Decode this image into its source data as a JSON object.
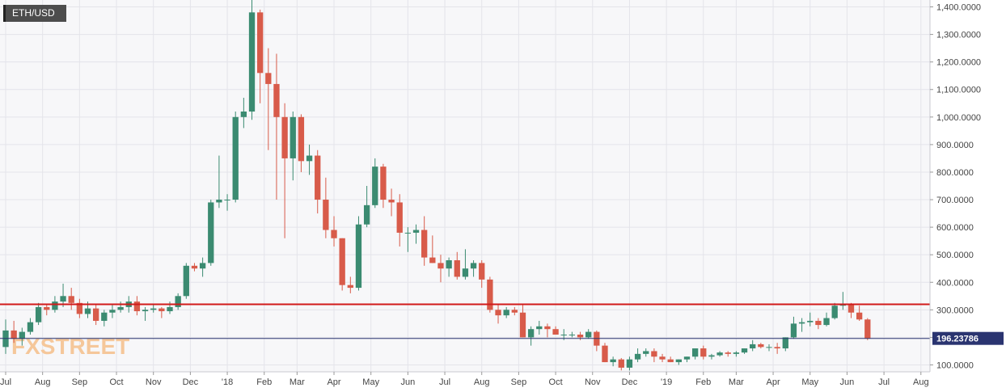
{
  "symbol": "ETH/USD",
  "watermark": {
    "prefix": "FX",
    "suffix": "STREET"
  },
  "colors": {
    "up": "#3b8b71",
    "down": "#d85b4a",
    "level_line": "#d11a1a",
    "price_line": "#2a3470",
    "price_badge_bg": "#2a3470",
    "watermark": "#f5c79a"
  },
  "chart_data": {
    "type": "candlestick",
    "title": "ETH/USD",
    "ylim": [
      75,
      1425
    ],
    "y_ticks": [
      {
        "value": 100,
        "label": "100.0000"
      },
      {
        "value": 200,
        "label": "200.0000"
      },
      {
        "value": 300,
        "label": "300.0000"
      },
      {
        "value": 400,
        "label": "400.0000"
      },
      {
        "value": 500,
        "label": "500.0000"
      },
      {
        "value": 600,
        "label": "600.0000"
      },
      {
        "value": 700,
        "label": "700.0000"
      },
      {
        "value": 800,
        "label": "800.0000"
      },
      {
        "value": 900,
        "label": "900.0000"
      },
      {
        "value": 1000,
        "label": "1,000.0000"
      },
      {
        "value": 1100,
        "label": "1,100.0000"
      },
      {
        "value": 1200,
        "label": "1,200.0000"
      },
      {
        "value": 1300,
        "label": "1,300.0000"
      },
      {
        "value": 1400,
        "label": "1,400.0000"
      }
    ],
    "x_ticks": [
      {
        "week": 0,
        "label": "Jul"
      },
      {
        "week": 4.5,
        "label": "Aug"
      },
      {
        "week": 9,
        "label": "Sep"
      },
      {
        "week": 13.5,
        "label": "Oct"
      },
      {
        "week": 18,
        "label": "Nov"
      },
      {
        "week": 22.5,
        "label": "Dec"
      },
      {
        "week": 27,
        "label": "'18"
      },
      {
        "week": 31.5,
        "label": "Feb"
      },
      {
        "week": 35.5,
        "label": "Mar"
      },
      {
        "week": 40,
        "label": "Apr"
      },
      {
        "week": 44.5,
        "label": "May"
      },
      {
        "week": 49,
        "label": "Jun"
      },
      {
        "week": 53.5,
        "label": "Jul"
      },
      {
        "week": 58,
        "label": "Aug"
      },
      {
        "week": 62.5,
        "label": "Sep"
      },
      {
        "week": 67,
        "label": "Oct"
      },
      {
        "week": 71.5,
        "label": "Nov"
      },
      {
        "week": 76,
        "label": "Dec"
      },
      {
        "week": 80.5,
        "label": "'19"
      },
      {
        "week": 85,
        "label": "Feb"
      },
      {
        "week": 89,
        "label": "Mar"
      },
      {
        "week": 93.5,
        "label": "Apr"
      },
      {
        "week": 98,
        "label": "May"
      },
      {
        "week": 102.5,
        "label": "Jun"
      },
      {
        "week": 107,
        "label": "Jul"
      },
      {
        "week": 111.5,
        "label": "Aug"
      }
    ],
    "weeks_visible": 113,
    "candles": [
      [
        165,
        265,
        140,
        225
      ],
      [
        225,
        260,
        180,
        195
      ],
      [
        195,
        235,
        170,
        220
      ],
      [
        220,
        270,
        210,
        255
      ],
      [
        255,
        325,
        245,
        310
      ],
      [
        310,
        320,
        280,
        300
      ],
      [
        300,
        350,
        290,
        330
      ],
      [
        330,
        395,
        310,
        350
      ],
      [
        350,
        380,
        300,
        325
      ],
      [
        325,
        340,
        270,
        285
      ],
      [
        285,
        330,
        270,
        305
      ],
      [
        305,
        320,
        245,
        260
      ],
      [
        260,
        300,
        240,
        290
      ],
      [
        290,
        320,
        270,
        300
      ],
      [
        300,
        330,
        290,
        310
      ],
      [
        310,
        350,
        290,
        330
      ],
      [
        330,
        350,
        280,
        295
      ],
      [
        295,
        310,
        260,
        300
      ],
      [
        300,
        320,
        290,
        305
      ],
      [
        305,
        310,
        270,
        295
      ],
      [
        295,
        330,
        285,
        310
      ],
      [
        310,
        360,
        300,
        350
      ],
      [
        350,
        470,
        340,
        460
      ],
      [
        460,
        470,
        440,
        450
      ],
      [
        450,
        490,
        420,
        470
      ],
      [
        470,
        700,
        460,
        690
      ],
      [
        690,
        860,
        670,
        700
      ],
      [
        700,
        720,
        660,
        700
      ],
      [
        700,
        1020,
        690,
        1000
      ],
      [
        1000,
        1070,
        960,
        1020
      ],
      [
        1020,
        1430,
        990,
        1380
      ],
      [
        1380,
        1390,
        1050,
        1160
      ],
      [
        1160,
        1250,
        880,
        1120
      ],
      [
        1120,
        1230,
        700,
        1000
      ],
      [
        1000,
        1050,
        560,
        850
      ],
      [
        850,
        1020,
        770,
        1000
      ],
      [
        1000,
        1010,
        800,
        840
      ],
      [
        840,
        900,
        790,
        860
      ],
      [
        860,
        880,
        650,
        700
      ],
      [
        700,
        780,
        560,
        590
      ],
      [
        590,
        640,
        530,
        560
      ],
      [
        560,
        560,
        370,
        390
      ],
      [
        390,
        420,
        360,
        380
      ],
      [
        380,
        640,
        370,
        610
      ],
      [
        610,
        750,
        600,
        680
      ],
      [
        680,
        850,
        670,
        820
      ],
      [
        820,
        830,
        670,
        700
      ],
      [
        700,
        740,
        640,
        690
      ],
      [
        690,
        720,
        530,
        580
      ],
      [
        580,
        600,
        510,
        580
      ],
      [
        580,
        610,
        540,
        590
      ],
      [
        590,
        640,
        460,
        490
      ],
      [
        490,
        570,
        470,
        470
      ],
      [
        470,
        500,
        400,
        450
      ],
      [
        450,
        490,
        420,
        480
      ],
      [
        480,
        510,
        410,
        420
      ],
      [
        420,
        520,
        410,
        450
      ],
      [
        450,
        480,
        420,
        470
      ],
      [
        470,
        480,
        380,
        410
      ],
      [
        410,
        420,
        290,
        300
      ],
      [
        300,
        320,
        250,
        280
      ],
      [
        280,
        310,
        270,
        300
      ],
      [
        300,
        310,
        280,
        290
      ],
      [
        290,
        320,
        200,
        200
      ],
      [
        200,
        240,
        170,
        230
      ],
      [
        230,
        260,
        210,
        240
      ],
      [
        240,
        250,
        200,
        230
      ],
      [
        230,
        240,
        210,
        210
      ],
      [
        210,
        230,
        190,
        210
      ],
      [
        210,
        220,
        200,
        210
      ],
      [
        210,
        220,
        190,
        200
      ],
      [
        200,
        230,
        195,
        220
      ],
      [
        220,
        225,
        150,
        170
      ],
      [
        170,
        180,
        110,
        110
      ],
      [
        110,
        130,
        95,
        120
      ],
      [
        120,
        125,
        80,
        90
      ],
      [
        90,
        130,
        80,
        120
      ],
      [
        120,
        160,
        110,
        140
      ],
      [
        140,
        160,
        130,
        150
      ],
      [
        150,
        160,
        110,
        130
      ],
      [
        130,
        140,
        110,
        120
      ],
      [
        120,
        130,
        110,
        110
      ],
      [
        110,
        120,
        100,
        120
      ],
      [
        120,
        130,
        110,
        130
      ],
      [
        130,
        160,
        120,
        160
      ],
      [
        160,
        170,
        120,
        130
      ],
      [
        130,
        140,
        120,
        135
      ],
      [
        135,
        150,
        130,
        145
      ],
      [
        145,
        150,
        130,
        140
      ],
      [
        140,
        150,
        130,
        145
      ],
      [
        145,
        160,
        140,
        160
      ],
      [
        160,
        190,
        150,
        175
      ],
      [
        175,
        180,
        160,
        165
      ],
      [
        165,
        175,
        150,
        165
      ],
      [
        165,
        180,
        140,
        160
      ],
      [
        160,
        200,
        150,
        200
      ],
      [
        200,
        275,
        195,
        250
      ],
      [
        250,
        270,
        220,
        255
      ],
      [
        255,
        290,
        240,
        260
      ],
      [
        260,
        270,
        230,
        245
      ],
      [
        245,
        290,
        240,
        270
      ],
      [
        270,
        325,
        265,
        315
      ],
      [
        315,
        365,
        300,
        320
      ],
      [
        320,
        325,
        270,
        290
      ],
      [
        290,
        315,
        260,
        265
      ],
      [
        265,
        270,
        190,
        196
      ]
    ],
    "horizontal_level": 320,
    "last_price": 196.23786,
    "last_price_label": "196.23786"
  }
}
